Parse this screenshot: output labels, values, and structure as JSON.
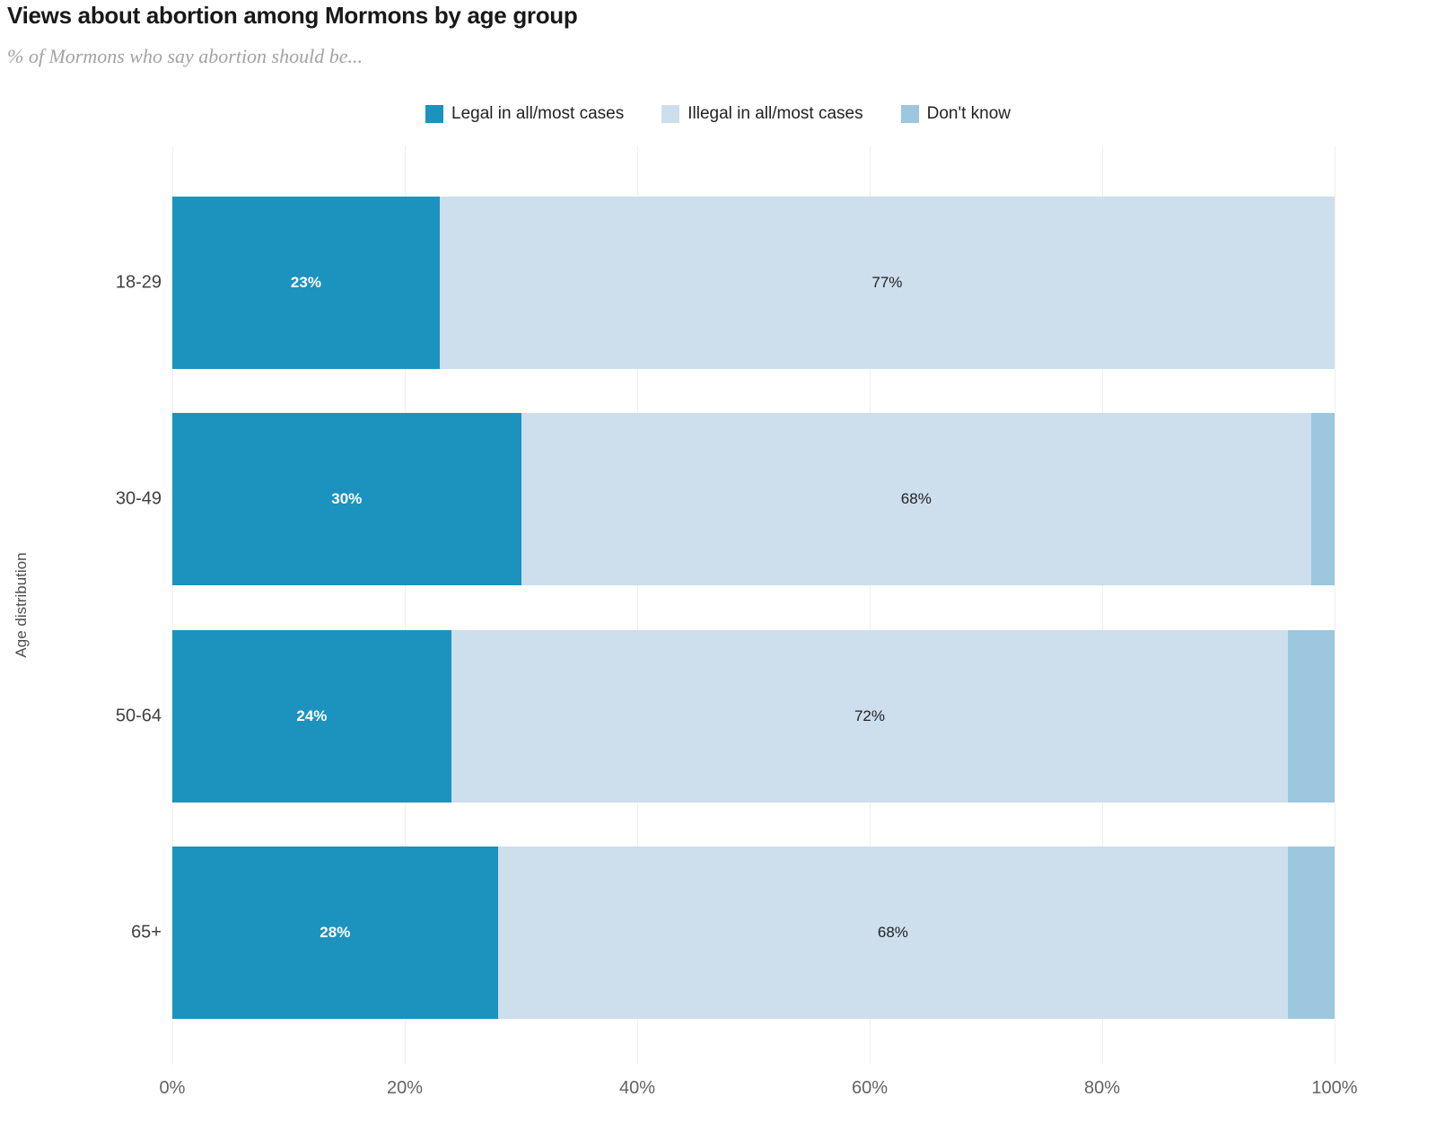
{
  "header": {
    "title": "Views about abortion among Mormons by age group",
    "subtitle": "% of Mormons who say abortion should be..."
  },
  "chart_data": {
    "type": "bar",
    "orientation": "horizontal",
    "stacked": true,
    "title": "Views about abortion among Mormons by age group",
    "subtitle": "% of Mormons who say abortion should be...",
    "categories": [
      "18-29",
      "30-49",
      "50-64",
      "65+"
    ],
    "series": [
      {
        "name": "Legal in all/most cases",
        "color": "#1b93be",
        "label_color": "#ffffff",
        "show_value_labels": true,
        "values": [
          23,
          30,
          24,
          28
        ]
      },
      {
        "name": "Illegal in all/most cases",
        "color": "#cddeed",
        "label_color": "#222222",
        "show_value_labels": true,
        "values": [
          77,
          68,
          72,
          68
        ]
      },
      {
        "name": "Don't know",
        "color": "#9dc6df",
        "label_color": "#222222",
        "show_value_labels": false,
        "values": [
          0,
          2,
          4,
          4
        ]
      }
    ],
    "value_label_suffix": "%",
    "xlim": [
      0,
      100
    ],
    "tick_values": [
      0,
      20,
      40,
      60,
      80,
      100
    ],
    "xlabel_ticks": [
      "0%",
      "20%",
      "40%",
      "60%",
      "80%",
      "100%"
    ],
    "ylabel": "Age distribution",
    "legend_position": "top",
    "grid": "vertical",
    "colors": {
      "grid_line": "#efefef",
      "title_text": "#191919",
      "subtitle_text": "#a3a3a3",
      "axis_text": "#636363",
      "category_text": "#404040"
    }
  }
}
